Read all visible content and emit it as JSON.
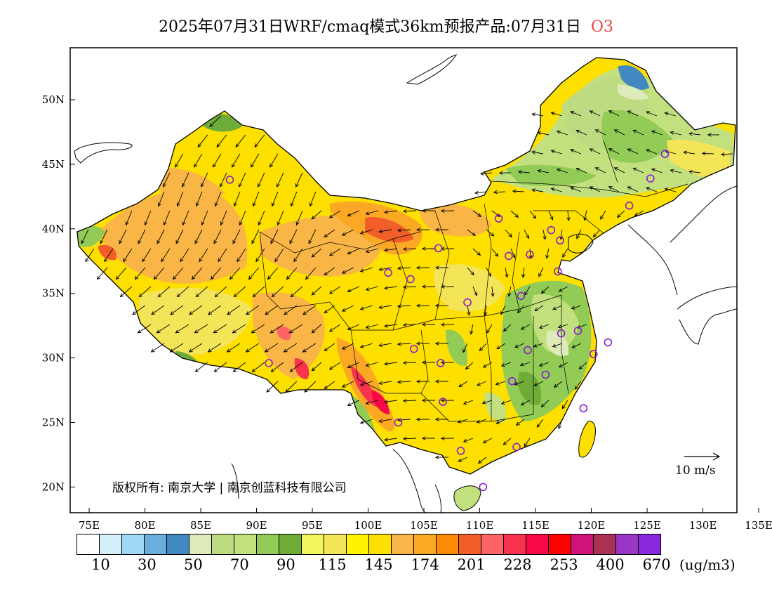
{
  "title": {
    "main": "2025年07月31日WRF/cmaq模式36km预报产品:07月31日",
    "pollutant": "O3"
  },
  "map": {
    "lon_ticks": [
      "75E",
      "80E",
      "85E",
      "90E",
      "95E",
      "100E",
      "105E",
      "110E",
      "115E",
      "120E",
      "125E",
      "130E",
      "135E"
    ],
    "lat_ticks": [
      "50N",
      "45N",
      "40N",
      "35N",
      "30N",
      "25N",
      "20N"
    ],
    "lon_values": [
      75,
      80,
      85,
      90,
      95,
      100,
      105,
      110,
      115,
      120,
      125,
      130,
      135
    ],
    "lat_values": [
      50,
      45,
      40,
      35,
      30,
      25,
      20
    ]
  },
  "wind_reference": {
    "label": "10 m/s"
  },
  "copyright": "版权所有: 南京大学 | 南京创蓝科技有限公司",
  "colorbar": {
    "colors": [
      "#ffffff",
      "#d4eefa",
      "#9fd8f4",
      "#6aaedc",
      "#4189c0",
      "#dcebb8",
      "#bedb82",
      "#c2e07e",
      "#92cb55",
      "#6eab38",
      "#f2f65a",
      "#f4e457",
      "#fff300",
      "#fde000",
      "#f9b545",
      "#fba825",
      "#fc8a05",
      "#f25e2a",
      "#fe6466",
      "#f7334e",
      "#f70849",
      "#ff0000",
      "#cf137a",
      "#a93254",
      "#9a36c6",
      "#8829e0"
    ],
    "labels": [
      "10",
      "30",
      "50",
      "70",
      "90",
      "115",
      "145",
      "174",
      "201",
      "228",
      "253",
      "400",
      "670"
    ],
    "unit": "(ug/m3)"
  },
  "cities": [
    {
      "lon": 87.6,
      "lat": 43.8
    },
    {
      "lon": 91.1,
      "lat": 29.6
    },
    {
      "lon": 101.8,
      "lat": 36.6
    },
    {
      "lon": 103.8,
      "lat": 36.1
    },
    {
      "lon": 104.1,
      "lat": 30.7
    },
    {
      "lon": 106.5,
      "lat": 29.6
    },
    {
      "lon": 106.7,
      "lat": 26.6
    },
    {
      "lon": 102.7,
      "lat": 25.0
    },
    {
      "lon": 108.3,
      "lat": 22.8
    },
    {
      "lon": 110.3,
      "lat": 20.0
    },
    {
      "lon": 108.9,
      "lat": 34.3
    },
    {
      "lon": 106.3,
      "lat": 38.5
    },
    {
      "lon": 111.7,
      "lat": 40.8
    },
    {
      "lon": 112.6,
      "lat": 37.9
    },
    {
      "lon": 114.5,
      "lat": 38.0
    },
    {
      "lon": 116.4,
      "lat": 39.9
    },
    {
      "lon": 117.2,
      "lat": 39.1
    },
    {
      "lon": 117.0,
      "lat": 36.7
    },
    {
      "lon": 113.7,
      "lat": 34.8
    },
    {
      "lon": 114.3,
      "lat": 30.6
    },
    {
      "lon": 112.9,
      "lat": 28.2
    },
    {
      "lon": 113.3,
      "lat": 23.1
    },
    {
      "lon": 115.9,
      "lat": 28.7
    },
    {
      "lon": 117.3,
      "lat": 31.9
    },
    {
      "lon": 118.8,
      "lat": 32.1
    },
    {
      "lon": 120.2,
      "lat": 30.3
    },
    {
      "lon": 121.5,
      "lat": 31.2
    },
    {
      "lon": 119.3,
      "lat": 26.1
    },
    {
      "lon": 123.4,
      "lat": 41.8
    },
    {
      "lon": 125.3,
      "lat": 43.9
    },
    {
      "lon": 126.6,
      "lat": 45.8
    }
  ]
}
